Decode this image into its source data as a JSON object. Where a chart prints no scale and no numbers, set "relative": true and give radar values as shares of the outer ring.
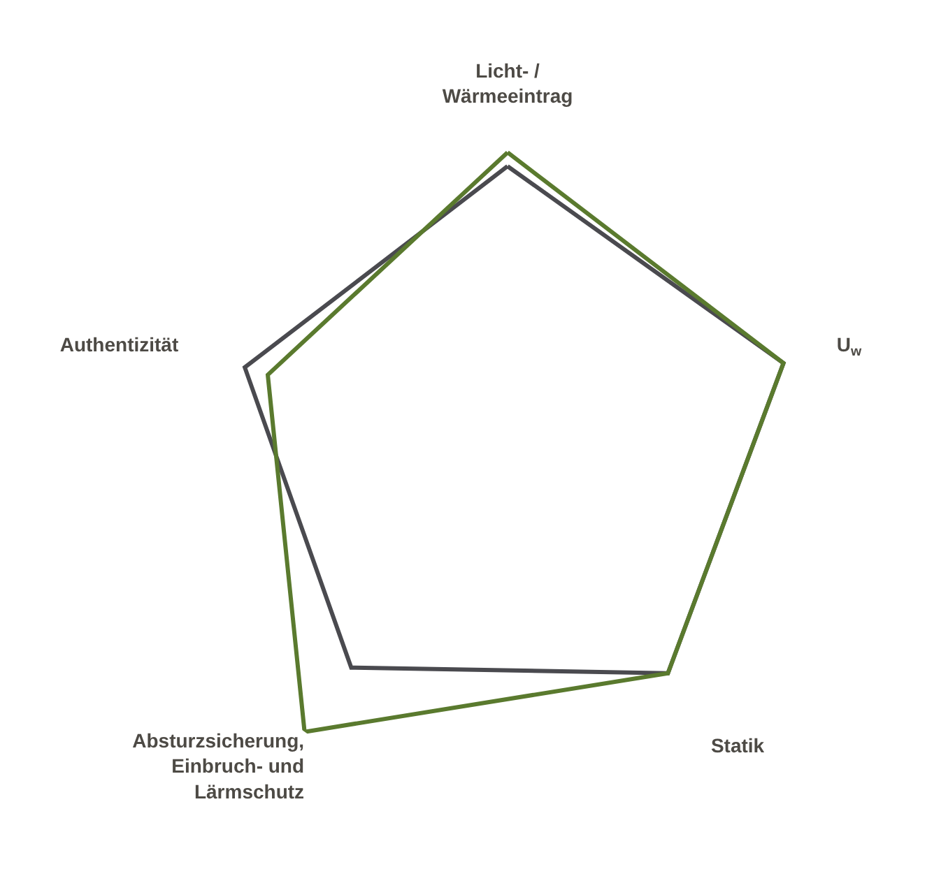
{
  "chart_data": {
    "type": "radar",
    "relative": true,
    "categories": [
      "Licht- /\nWärmeeintrag",
      "U$_{w}$",
      "Statik",
      "Absturzsicherung,\nEinbruch- und\nLärmschutz",
      "Authentizität"
    ],
    "series": [
      {
        "color": "#4a4a4f",
        "values": [
          0.83,
          0.84,
          0.79,
          0.77,
          0.8
        ]
      },
      {
        "color": "#5a7a2e",
        "values": [
          0.87,
          0.84,
          0.79,
          1,
          0.73
        ]
      }
    ]
  }
}
